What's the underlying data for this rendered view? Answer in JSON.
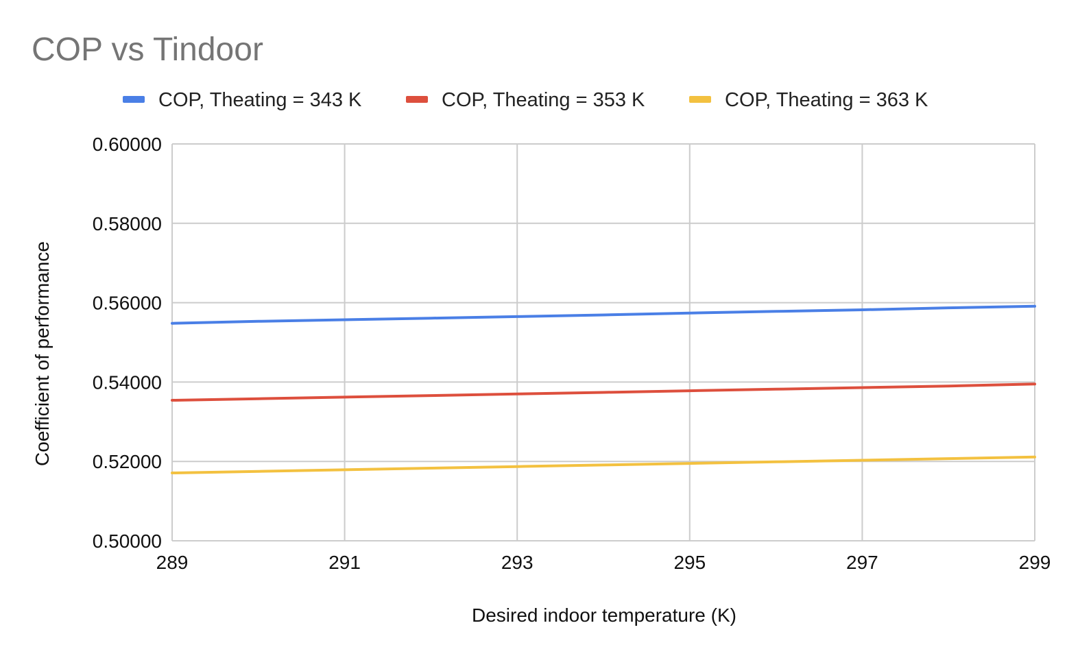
{
  "chart_data": {
    "type": "line",
    "title": "COP vs Tindoor",
    "xlabel": "Desired indoor temperature (K)",
    "ylabel": "Coefficient of performance",
    "xlim": [
      289,
      299
    ],
    "ylim": [
      0.5,
      0.6
    ],
    "x_ticks": [
      289,
      291,
      293,
      295,
      297,
      299
    ],
    "x_tick_labels": [
      "289",
      "291",
      "293",
      "295",
      "297",
      "299"
    ],
    "y_ticks": [
      0.5,
      0.52,
      0.54,
      0.56,
      0.58,
      0.6
    ],
    "y_tick_labels": [
      "0.50000",
      "0.52000",
      "0.54000",
      "0.56000",
      "0.58000",
      "0.60000"
    ],
    "grid": true,
    "legend_position": "top",
    "x": [
      289,
      290,
      291,
      292,
      293,
      294,
      295,
      296,
      297,
      298,
      299
    ],
    "series": [
      {
        "name": "COP, Theating = 343 K",
        "color": "#4a7fe6",
        "values": [
          0.5548,
          0.5553,
          0.5557,
          0.5561,
          0.5565,
          0.5569,
          0.5574,
          0.5578,
          0.5582,
          0.5587,
          0.5591
        ]
      },
      {
        "name": "COP, Theating = 353 K",
        "color": "#dd4f3d",
        "values": [
          0.5354,
          0.5358,
          0.5362,
          0.5366,
          0.537,
          0.5374,
          0.5378,
          0.5382,
          0.5386,
          0.539,
          0.5395
        ]
      },
      {
        "name": "COP, Theating = 363 K",
        "color": "#f3c140",
        "values": [
          0.5171,
          0.5175,
          0.5179,
          0.5183,
          0.5187,
          0.5191,
          0.5195,
          0.5199,
          0.5203,
          0.5207,
          0.5211
        ]
      }
    ]
  }
}
